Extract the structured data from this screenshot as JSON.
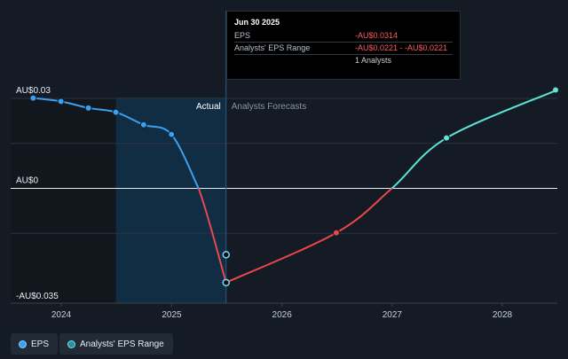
{
  "chart_data": {
    "type": "line",
    "title": "",
    "y_labels": {
      "top": "AU$0.03",
      "zero": "AU$0",
      "bottom": "-AU$0.035"
    },
    "region_labels": {
      "actual": "Actual",
      "forecast": "Analysts Forecasts"
    },
    "x_ticks": [
      "2024",
      "2025",
      "2026",
      "2027",
      "2028"
    ],
    "ylim": [
      -0.035,
      0.03
    ],
    "series": [
      {
        "name": "EPS",
        "color": "#3aa0f0",
        "points": [
          [
            "2023-09-30",
            0.0301
          ],
          [
            "2023-12-31",
            0.029
          ],
          [
            "2024-03-31",
            0.0268
          ],
          [
            "2024-06-30",
            0.0254
          ],
          [
            "2024-09-30",
            0.0212
          ],
          [
            "2024-12-31",
            0.018
          ],
          [
            "2025-03-31",
            0.0
          ],
          [
            "2025-06-30",
            -0.0314
          ]
        ]
      },
      {
        "name": "Analysts' EPS Range",
        "color": "#ff5a5f",
        "points": [
          [
            "2025-06-30",
            -0.0221
          ]
        ]
      },
      {
        "name": "Forecast",
        "color_negative": "#e8474c",
        "color_positive": "#5fe3d6",
        "points": [
          [
            "2025-06-30",
            -0.0314
          ],
          [
            "2026-06-30",
            -0.0148
          ],
          [
            "2026-12-31",
            0.0
          ],
          [
            "2027-06-30",
            0.0168
          ],
          [
            "2028-06-30",
            0.0328
          ]
        ]
      }
    ],
    "highlight_date": "2025-06-30",
    "legend": [
      {
        "label": "EPS",
        "color": "#3aa0f0",
        "ring": "#7fd3ff"
      },
      {
        "label": "Analysts' EPS Range",
        "color": "#2a8fa0",
        "ring": "#7fe0e0"
      }
    ]
  },
  "tooltip": {
    "date": "Jun 30 2025",
    "rows": [
      {
        "label": "EPS",
        "value": "-AU$0.0314"
      },
      {
        "label": "Analysts' EPS Range",
        "value": "-AU$0.0221 - -AU$0.0221"
      },
      {
        "label": "",
        "value": "1 Analysts"
      }
    ]
  }
}
